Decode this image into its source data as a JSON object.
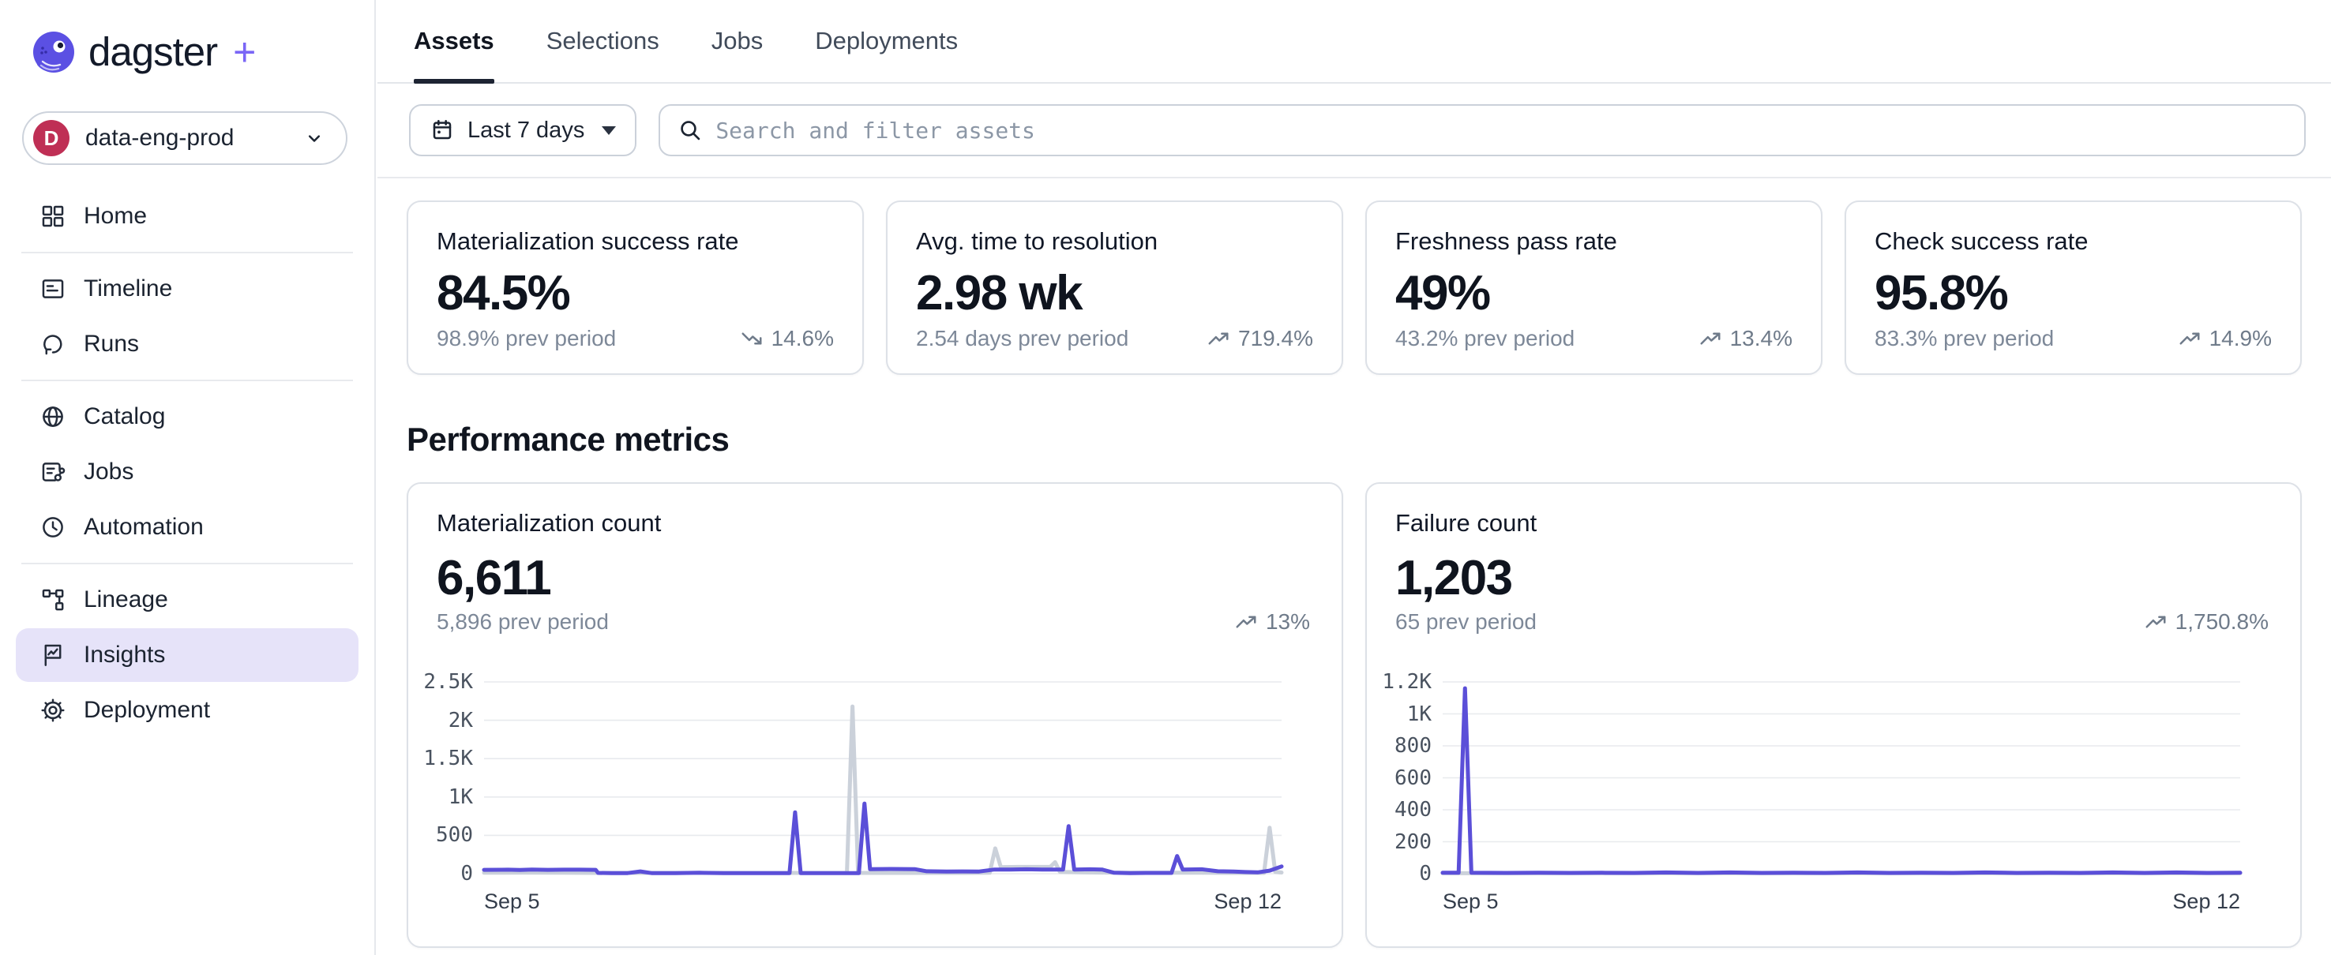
{
  "brand": {
    "name": "dagster",
    "plus": "+"
  },
  "workspace": {
    "initial": "D",
    "name": "data-eng-prod"
  },
  "sidebar": {
    "items": [
      {
        "label": "Home",
        "icon": "grid"
      },
      {
        "label": "Timeline",
        "icon": "gantt"
      },
      {
        "label": "Runs",
        "icon": "loop-arrow"
      },
      {
        "label": "Catalog",
        "icon": "globe"
      },
      {
        "label": "Jobs",
        "icon": "job-graph"
      },
      {
        "label": "Automation",
        "icon": "clock"
      },
      {
        "label": "Lineage",
        "icon": "lineage-graph"
      },
      {
        "label": "Insights",
        "icon": "insights-flag",
        "selected": true
      },
      {
        "label": "Deployment",
        "icon": "gear"
      }
    ]
  },
  "tabs": [
    {
      "label": "Assets",
      "active": true
    },
    {
      "label": "Selections"
    },
    {
      "label": "Jobs"
    },
    {
      "label": "Deployments"
    }
  ],
  "filter_bar": {
    "date_range": "Last 7 days",
    "search_placeholder": "Search and filter assets"
  },
  "metric_cards": [
    {
      "title": "Materialization success rate",
      "value": "84.5%",
      "prev": "98.9% prev period",
      "trend": "14.6%",
      "trend_direction": "down"
    },
    {
      "title": "Avg. time to resolution",
      "value": "2.98 wk",
      "prev": "2.54 days prev period",
      "trend": "719.4%",
      "trend_direction": "up"
    },
    {
      "title": "Freshness pass rate",
      "value": "49%",
      "prev": "43.2% prev period",
      "trend": "13.4%",
      "trend_direction": "up"
    },
    {
      "title": "Check success rate",
      "value": "95.8%",
      "prev": "83.3% prev period",
      "trend": "14.9%",
      "trend_direction": "up"
    }
  ],
  "section": {
    "title": "Performance metrics"
  },
  "chart_cards": [
    {
      "title": "Materialization count",
      "value": "6,611",
      "prev": "5,896 prev period",
      "trend": "13%",
      "trend_direction": "up"
    },
    {
      "title": "Failure count",
      "value": "1,203",
      "prev": "65 prev period",
      "trend": "1,750.8%",
      "trend_direction": "up"
    }
  ],
  "chart_data": [
    {
      "type": "line",
      "title": "Materialization count",
      "x_start_label": "Sep 5",
      "x_end_label": "Sep 12",
      "ymax": 2500,
      "grid": true,
      "legend": "none",
      "yticks": [
        {
          "label": "0",
          "value": 0
        },
        {
          "label": "500",
          "value": 500
        },
        {
          "label": "1K",
          "value": 1000
        },
        {
          "label": "1.5K",
          "value": 1500
        },
        {
          "label": "2K",
          "value": 2000
        },
        {
          "label": "2.5K",
          "value": 2500
        }
      ],
      "series": [
        {
          "name": "prev period",
          "color": "#CBD1DA",
          "points": [
            [
              0,
              12
            ],
            [
              0.05,
              14
            ],
            [
              0.1,
              12
            ],
            [
              0.14,
              10
            ],
            [
              0.18,
              10
            ],
            [
              0.22,
              10
            ],
            [
              0.26,
              10
            ],
            [
              0.3,
              10
            ],
            [
              0.34,
              10
            ],
            [
              0.38,
              10
            ],
            [
              0.42,
              10
            ],
            [
              0.455,
              10
            ],
            [
              0.462,
              2180
            ],
            [
              0.469,
              10
            ],
            [
              0.5,
              10
            ],
            [
              0.53,
              10
            ],
            [
              0.56,
              10
            ],
            [
              0.6,
              10
            ],
            [
              0.634,
              12
            ],
            [
              0.641,
              330
            ],
            [
              0.648,
              85
            ],
            [
              0.67,
              88
            ],
            [
              0.7,
              88
            ],
            [
              0.71,
              88
            ],
            [
              0.716,
              150
            ],
            [
              0.722,
              25
            ],
            [
              0.75,
              18
            ],
            [
              0.78,
              14
            ],
            [
              0.82,
              12
            ],
            [
              0.86,
              12
            ],
            [
              0.9,
              12
            ],
            [
              0.94,
              10
            ],
            [
              0.978,
              10
            ],
            [
              0.985,
              600
            ],
            [
              0.992,
              25
            ],
            [
              1,
              15
            ]
          ]
        },
        {
          "name": "current period",
          "color": "#5B4FD8",
          "points": [
            [
              0,
              50
            ],
            [
              0.03,
              52
            ],
            [
              0.045,
              48
            ],
            [
              0.06,
              54
            ],
            [
              0.08,
              50
            ],
            [
              0.1,
              52
            ],
            [
              0.12,
              52
            ],
            [
              0.14,
              50
            ],
            [
              0.143,
              10
            ],
            [
              0.16,
              8
            ],
            [
              0.18,
              8
            ],
            [
              0.196,
              30
            ],
            [
              0.21,
              8
            ],
            [
              0.24,
              8
            ],
            [
              0.27,
              12
            ],
            [
              0.3,
              8
            ],
            [
              0.33,
              8
            ],
            [
              0.36,
              8
            ],
            [
              0.383,
              8
            ],
            [
              0.39,
              800
            ],
            [
              0.397,
              8
            ],
            [
              0.42,
              8
            ],
            [
              0.45,
              8
            ],
            [
              0.47,
              8
            ],
            [
              0.477,
              915
            ],
            [
              0.484,
              60
            ],
            [
              0.51,
              62
            ],
            [
              0.54,
              60
            ],
            [
              0.555,
              32
            ],
            [
              0.58,
              28
            ],
            [
              0.6,
              30
            ],
            [
              0.62,
              28
            ],
            [
              0.64,
              55
            ],
            [
              0.66,
              55
            ],
            [
              0.68,
              58
            ],
            [
              0.7,
              55
            ],
            [
              0.726,
              55
            ],
            [
              0.733,
              620
            ],
            [
              0.74,
              55
            ],
            [
              0.76,
              58
            ],
            [
              0.775,
              55
            ],
            [
              0.79,
              12
            ],
            [
              0.81,
              8
            ],
            [
              0.83,
              10
            ],
            [
              0.862,
              10
            ],
            [
              0.869,
              230
            ],
            [
              0.876,
              55
            ],
            [
              0.9,
              58
            ],
            [
              0.92,
              32
            ],
            [
              0.94,
              28
            ],
            [
              0.955,
              22
            ],
            [
              0.97,
              18
            ],
            [
              0.985,
              40
            ],
            [
              1,
              95
            ]
          ]
        }
      ]
    },
    {
      "type": "line",
      "title": "Failure count",
      "x_start_label": "Sep 5",
      "x_end_label": "Sep 12",
      "ymax": 1200,
      "grid": true,
      "legend": "none",
      "yticks": [
        {
          "label": "0",
          "value": 0
        },
        {
          "label": "200",
          "value": 200
        },
        {
          "label": "400",
          "value": 400
        },
        {
          "label": "600",
          "value": 600
        },
        {
          "label": "800",
          "value": 800
        },
        {
          "label": "1K",
          "value": 1000
        },
        {
          "label": "1.2K",
          "value": 1200
        }
      ],
      "series": [
        {
          "name": "prev period",
          "color": "#CBD1DA",
          "points": [
            [
              0,
              3
            ],
            [
              0.5,
              3
            ],
            [
              1,
              3
            ]
          ]
        },
        {
          "name": "current period",
          "color": "#5B4FD8",
          "points": [
            [
              0,
              6
            ],
            [
              0.02,
              6
            ],
            [
              0.028,
              1160
            ],
            [
              0.036,
              6
            ],
            [
              0.08,
              5
            ],
            [
              0.12,
              6
            ],
            [
              0.16,
              5
            ],
            [
              0.2,
              6
            ],
            [
              0.24,
              5
            ],
            [
              0.28,
              8
            ],
            [
              0.32,
              5
            ],
            [
              0.36,
              8
            ],
            [
              0.4,
              5
            ],
            [
              0.44,
              6
            ],
            [
              0.48,
              5
            ],
            [
              0.52,
              8
            ],
            [
              0.56,
              5
            ],
            [
              0.6,
              6
            ],
            [
              0.64,
              5
            ],
            [
              0.68,
              8
            ],
            [
              0.72,
              5
            ],
            [
              0.76,
              6
            ],
            [
              0.8,
              5
            ],
            [
              0.84,
              8
            ],
            [
              0.88,
              5
            ],
            [
              0.92,
              8
            ],
            [
              0.96,
              5
            ],
            [
              1,
              6
            ]
          ]
        }
      ]
    }
  ],
  "colors": {
    "accent_purple": "#6A5BF6",
    "chart_current": "#5B4FD8",
    "chart_prev": "#CBD1DA",
    "selected_item_bg": "#E6E3F9",
    "workspace_badge": "#BF2F55",
    "gridline": "#E8EAEE"
  }
}
